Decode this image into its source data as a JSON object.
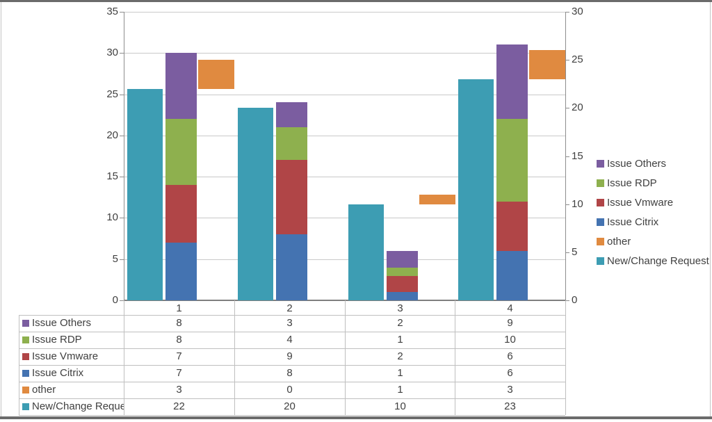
{
  "chart_data": {
    "type": "bar",
    "subtype": "combo-clustered-stacked",
    "title": "",
    "grid": "horizontal",
    "categories": [
      "1",
      "2",
      "3",
      "4"
    ],
    "left_axis": {
      "min": 0,
      "max": 35,
      "step": 5,
      "ticks": [
        "35",
        "30",
        "25",
        "20",
        "15",
        "10",
        "5",
        "0"
      ]
    },
    "right_axis": {
      "min": 0,
      "max": 30,
      "step": 5,
      "ticks": [
        "30",
        "25",
        "20",
        "15",
        "10",
        "5",
        "0"
      ]
    },
    "series": [
      {
        "name": "Issue Others",
        "color": "#7B5DA0",
        "axis": "left",
        "stack": "issues",
        "values": [
          8,
          3,
          2,
          9
        ]
      },
      {
        "name": "Issue RDP",
        "color": "#8EB04E",
        "axis": "left",
        "stack": "issues",
        "values": [
          8,
          4,
          1,
          10
        ]
      },
      {
        "name": "Issue Vmware",
        "color": "#B04547",
        "axis": "left",
        "stack": "issues",
        "values": [
          7,
          9,
          2,
          6
        ]
      },
      {
        "name": "Issue Citrix",
        "color": "#4473B1",
        "axis": "left",
        "stack": "issues",
        "values": [
          7,
          8,
          1,
          6
        ]
      },
      {
        "name": "other",
        "color": "#E08A40",
        "axis": "right",
        "stack": "requests",
        "values": [
          3,
          0,
          1,
          3
        ]
      },
      {
        "name": "New/Change Request",
        "color": "#3D9DB3",
        "axis": "right",
        "stack": "requests",
        "values": [
          22,
          20,
          10,
          23
        ]
      }
    ],
    "stack_order_bottom_up": [
      "Issue Citrix",
      "Issue Vmware",
      "Issue RDP",
      "Issue Others"
    ],
    "legend": {
      "position": "right",
      "entries": [
        "Issue Others",
        "Issue RDP",
        "Issue Vmware",
        "Issue Citrix",
        "other",
        "New/Change Request"
      ]
    },
    "data_table": {
      "column_headers": [
        "1",
        "2",
        "3",
        "4"
      ],
      "rows": [
        {
          "label": "Issue Others",
          "values": [
            "8",
            "3",
            "2",
            "9"
          ]
        },
        {
          "label": "Issue RDP",
          "values": [
            "8",
            "4",
            "1",
            "10"
          ]
        },
        {
          "label": "Issue Vmware",
          "values": [
            "7",
            "9",
            "2",
            "6"
          ]
        },
        {
          "label": "Issue Citrix",
          "values": [
            "7",
            "8",
            "1",
            "6"
          ]
        },
        {
          "label": "other",
          "values": [
            "3",
            "0",
            "1",
            "3"
          ]
        },
        {
          "label": "New/Change Request",
          "values": [
            "22",
            "20",
            "10",
            "23"
          ]
        }
      ]
    },
    "colors": {
      "text": "#3f3f3f",
      "gridline": "#c9c9c9",
      "axis_line": "#8c8c8c",
      "table_line": "#bfbfbf",
      "frame": "#6b6b6b"
    }
  }
}
